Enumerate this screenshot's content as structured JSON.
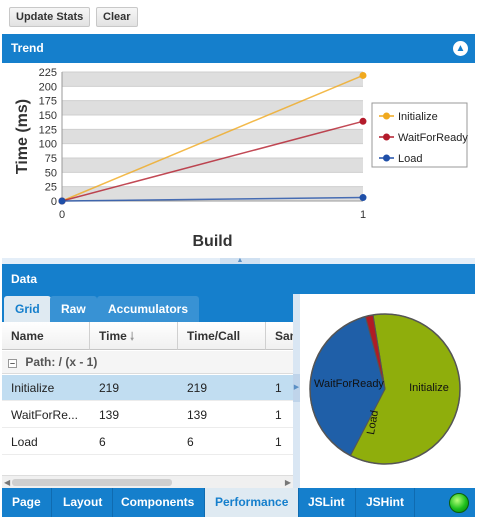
{
  "toolbar": {
    "update_label": "Update Stats",
    "clear_label": "Clear"
  },
  "trend": {
    "title": "Trend"
  },
  "chart_data": {
    "type": "line",
    "xlabel": "Build",
    "ylabel": "Time (ms)",
    "x": [
      0,
      1
    ],
    "xlim": [
      0,
      1
    ],
    "ylim": [
      0,
      225
    ],
    "yticks": [
      0,
      25,
      50,
      75,
      100,
      125,
      150,
      175,
      200,
      225
    ],
    "grid": true,
    "legend_position": "right",
    "series": [
      {
        "name": "Initialize",
        "values": [
          0,
          219
        ],
        "color": "#f0a91e"
      },
      {
        "name": "WaitForReady",
        "values": [
          0,
          139
        ],
        "color": "#b31b2b"
      },
      {
        "name": "Load",
        "values": [
          0,
          6
        ],
        "color": "#1f4fa8"
      }
    ]
  },
  "data_panel": {
    "title": "Data",
    "tabs": [
      "Grid",
      "Raw",
      "Accumulators"
    ],
    "columns": [
      "Name",
      "Time",
      "Time/Call",
      "Sam"
    ],
    "group_label": "Path: / (x - 1)",
    "rows": [
      {
        "name": "Initialize",
        "time": "219",
        "time_call": "219",
        "samples": "1"
      },
      {
        "name": "WaitForRe...",
        "time": "139",
        "time_call": "139",
        "samples": "1"
      },
      {
        "name": "Load",
        "time": "6",
        "time_call": "6",
        "samples": "1"
      }
    ]
  },
  "pie": {
    "type": "pie",
    "labels": [
      "Initialize",
      "WaitForReady",
      "Load"
    ],
    "values": [
      219,
      139,
      6
    ],
    "colors": [
      "#8fae0c",
      "#1f5fa8",
      "#b01c24"
    ]
  },
  "bottom_tabs": [
    "Page",
    "Layout",
    "Components",
    "Performance",
    "JSLint",
    "JSHint"
  ],
  "active_bottom_tab": "Performance",
  "colors": {
    "accent": "#157fcc",
    "status": "#1cbf1c"
  }
}
